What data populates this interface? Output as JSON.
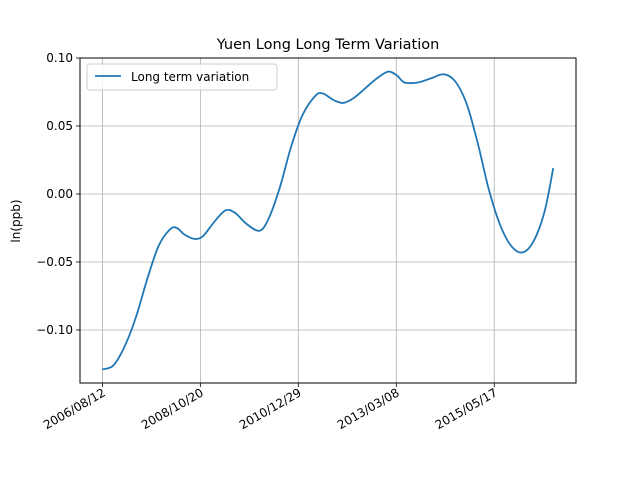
{
  "chart_data": {
    "type": "line",
    "title": "Yuen Long Long Term Variation",
    "xlabel": "",
    "ylabel": "ln(ppb)",
    "x_tick_labels": [
      "2006/08/12",
      "2008/10/20",
      "2010/12/29",
      "2013/03/08",
      "2015/05/17"
    ],
    "y_tick_labels": [
      "0.10",
      "0.05",
      "0.00",
      "−0.05",
      "−0.10"
    ],
    "y_ticks": [
      0.1,
      0.05,
      0.0,
      -0.05,
      -0.1
    ],
    "ylim": [
      -0.139,
      0.1
    ],
    "xlim": [
      "2006/02/10",
      "2017/03/15"
    ],
    "grid": true,
    "legend_position": "top-left",
    "series": [
      {
        "name": "Long term variation",
        "color": "#1f77b4",
        "points": [
          [
            "2006/08/12",
            -0.129
          ],
          [
            "2006/11/10",
            -0.126
          ],
          [
            "2007/02/10",
            -0.112
          ],
          [
            "2007/05/15",
            -0.09
          ],
          [
            "2007/08/15",
            -0.062
          ],
          [
            "2007/11/15",
            -0.038
          ],
          [
            "2008/02/15",
            -0.026
          ],
          [
            "2008/04/10",
            -0.025
          ],
          [
            "2008/06/15",
            -0.03
          ],
          [
            "2008/09/01",
            -0.033
          ],
          [
            "2008/11/10",
            -0.031
          ],
          [
            "2009/02/15",
            -0.02
          ],
          [
            "2009/05/15",
            -0.012
          ],
          [
            "2009/08/01",
            -0.014
          ],
          [
            "2009/11/01",
            -0.022
          ],
          [
            "2010/02/15",
            -0.027
          ],
          [
            "2010/05/01",
            -0.018
          ],
          [
            "2010/08/01",
            0.005
          ],
          [
            "2010/11/01",
            0.035
          ],
          [
            "2011/02/01",
            0.058
          ],
          [
            "2011/05/15",
            0.072
          ],
          [
            "2011/07/15",
            0.074
          ],
          [
            "2011/10/15",
            0.069
          ],
          [
            "2012/01/01",
            0.067
          ],
          [
            "2012/04/01",
            0.071
          ],
          [
            "2012/07/01",
            0.078
          ],
          [
            "2012/10/01",
            0.085
          ],
          [
            "2013/01/01",
            0.09
          ],
          [
            "2013/03/15",
            0.087
          ],
          [
            "2013/05/15",
            0.082
          ],
          [
            "2013/09/01",
            0.082
          ],
          [
            "2013/12/15",
            0.085
          ],
          [
            "2014/04/01",
            0.088
          ],
          [
            "2014/07/01",
            0.083
          ],
          [
            "2014/10/01",
            0.067
          ],
          [
            "2015/01/01",
            0.038
          ],
          [
            "2015/04/01",
            0.004
          ],
          [
            "2015/07/01",
            -0.022
          ],
          [
            "2015/10/01",
            -0.038
          ],
          [
            "2016/01/01",
            -0.043
          ],
          [
            "2016/04/01",
            -0.035
          ],
          [
            "2016/07/01",
            -0.013
          ],
          [
            "2016/09/10",
            0.019
          ]
        ]
      }
    ]
  }
}
